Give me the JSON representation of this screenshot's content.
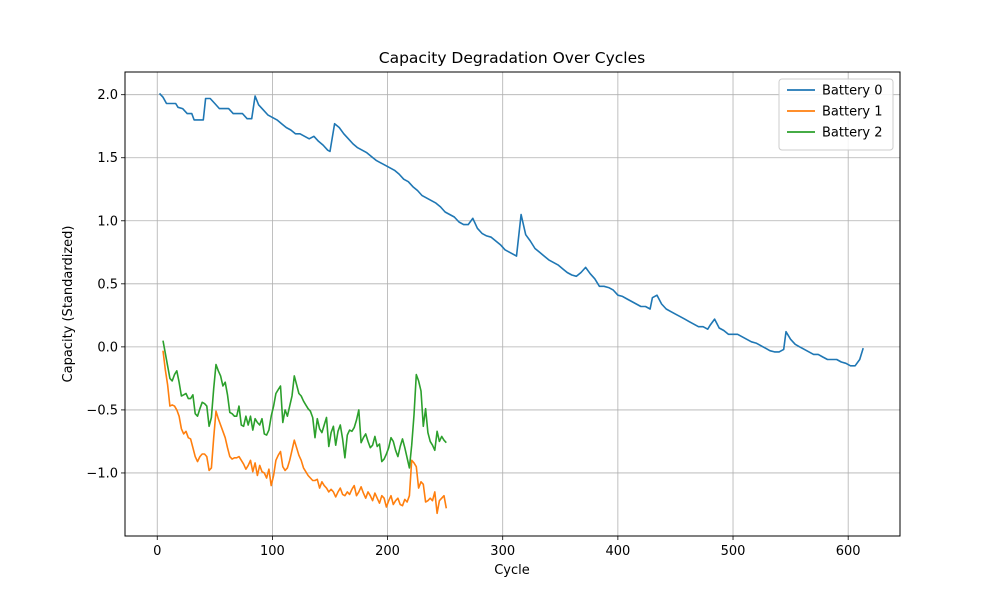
{
  "chart_data": {
    "type": "line",
    "title": "Capacity Degradation Over Cycles",
    "xlabel": "Cycle",
    "ylabel": "Capacity (Standardized)",
    "xlim": [
      -28,
      645
    ],
    "ylim": [
      -1.5,
      2.18
    ],
    "xticks": [
      0,
      100,
      200,
      300,
      400,
      500,
      600
    ],
    "yticks": [
      -1.0,
      -0.5,
      0.0,
      0.5,
      1.0,
      1.5,
      2.0
    ],
    "grid": true,
    "legend": "top-right",
    "series": [
      {
        "name": "Battery 0",
        "color": "#1f77b4",
        "x": [
          2,
          5,
          8,
          12,
          16,
          18,
          22,
          26,
          30,
          32,
          36,
          40,
          42,
          46,
          50,
          54,
          58,
          62,
          66,
          70,
          74,
          78,
          82,
          85,
          88,
          92,
          96,
          100,
          104,
          108,
          112,
          116,
          120,
          124,
          128,
          132,
          136,
          140,
          144,
          148,
          150,
          154,
          158,
          162,
          166,
          170,
          174,
          178,
          182,
          186,
          190,
          194,
          198,
          202,
          206,
          210,
          214,
          218,
          222,
          226,
          230,
          234,
          238,
          242,
          246,
          250,
          254,
          258,
          262,
          266,
          270,
          274,
          278,
          282,
          286,
          290,
          294,
          298,
          302,
          306,
          310,
          312,
          316,
          320,
          324,
          328,
          332,
          336,
          340,
          344,
          348,
          352,
          356,
          360,
          364,
          368,
          372,
          376,
          380,
          384,
          388,
          392,
          396,
          400,
          404,
          408,
          412,
          416,
          420,
          424,
          428,
          430,
          434,
          438,
          442,
          446,
          450,
          454,
          458,
          462,
          466,
          470,
          474,
          478,
          480,
          484,
          488,
          492,
          496,
          500,
          504,
          508,
          512,
          516,
          520,
          524,
          528,
          532,
          536,
          540,
          544,
          546,
          550,
          554,
          558,
          562,
          566,
          570,
          574,
          578,
          582,
          586,
          590,
          594,
          598,
          602,
          606,
          610,
          613
        ],
        "y": [
          2.01,
          1.98,
          1.93,
          1.93,
          1.93,
          1.9,
          1.89,
          1.85,
          1.85,
          1.8,
          1.8,
          1.8,
          1.97,
          1.97,
          1.93,
          1.89,
          1.89,
          1.89,
          1.85,
          1.85,
          1.85,
          1.81,
          1.81,
          1.99,
          1.92,
          1.88,
          1.84,
          1.82,
          1.8,
          1.77,
          1.74,
          1.72,
          1.69,
          1.69,
          1.67,
          1.65,
          1.67,
          1.63,
          1.6,
          1.56,
          1.55,
          1.77,
          1.74,
          1.69,
          1.65,
          1.61,
          1.58,
          1.56,
          1.54,
          1.51,
          1.48,
          1.46,
          1.44,
          1.42,
          1.4,
          1.37,
          1.33,
          1.31,
          1.27,
          1.24,
          1.2,
          1.18,
          1.16,
          1.14,
          1.11,
          1.07,
          1.05,
          1.03,
          0.99,
          0.97,
          0.97,
          1.02,
          0.94,
          0.9,
          0.88,
          0.87,
          0.84,
          0.81,
          0.77,
          0.75,
          0.73,
          0.72,
          1.05,
          0.89,
          0.84,
          0.78,
          0.75,
          0.72,
          0.69,
          0.67,
          0.65,
          0.62,
          0.59,
          0.57,
          0.56,
          0.59,
          0.63,
          0.58,
          0.54,
          0.48,
          0.48,
          0.47,
          0.45,
          0.41,
          0.4,
          0.38,
          0.36,
          0.34,
          0.32,
          0.32,
          0.3,
          0.39,
          0.41,
          0.34,
          0.3,
          0.28,
          0.26,
          0.24,
          0.22,
          0.2,
          0.18,
          0.16,
          0.16,
          0.14,
          0.17,
          0.22,
          0.15,
          0.13,
          0.1,
          0.1,
          0.1,
          0.08,
          0.06,
          0.04,
          0.03,
          0.01,
          -0.01,
          -0.03,
          -0.04,
          -0.04,
          -0.02,
          0.12,
          0.06,
          0.02,
          0.0,
          -0.02,
          -0.04,
          -0.06,
          -0.06,
          -0.08,
          -0.1,
          -0.1,
          -0.1,
          -0.12,
          -0.13,
          -0.15,
          -0.15,
          -0.1,
          -0.01
        ]
      },
      {
        "name": "Battery 1",
        "color": "#ff7f0e",
        "x": [
          5,
          7,
          9,
          11,
          13,
          15,
          17,
          19,
          21,
          23,
          25,
          27,
          29,
          31,
          33,
          35,
          37,
          39,
          41,
          43,
          45,
          47,
          49,
          51,
          53,
          55,
          57,
          59,
          61,
          63,
          65,
          67,
          69,
          71,
          73,
          75,
          77,
          79,
          81,
          83,
          85,
          87,
          89,
          91,
          93,
          95,
          97,
          99,
          101,
          103,
          105,
          107,
          109,
          111,
          113,
          115,
          117,
          119,
          121,
          123,
          125,
          127,
          129,
          131,
          133,
          135,
          137,
          139,
          141,
          143,
          145,
          147,
          149,
          151,
          153,
          155,
          157,
          159,
          161,
          163,
          165,
          167,
          169,
          171,
          173,
          175,
          177,
          179,
          181,
          183,
          185,
          187,
          189,
          191,
          193,
          195,
          197,
          199,
          201,
          203,
          205,
          207,
          209,
          211,
          213,
          215,
          217,
          219,
          221,
          223,
          225,
          227,
          229,
          231,
          233,
          235,
          237,
          239,
          241,
          243,
          245,
          247,
          249,
          251
        ],
        "y": [
          -0.03,
          -0.18,
          -0.3,
          -0.47,
          -0.46,
          -0.47,
          -0.5,
          -0.55,
          -0.65,
          -0.69,
          -0.67,
          -0.72,
          -0.73,
          -0.8,
          -0.87,
          -0.91,
          -0.87,
          -0.85,
          -0.85,
          -0.87,
          -0.98,
          -0.96,
          -0.72,
          -0.51,
          -0.57,
          -0.62,
          -0.67,
          -0.72,
          -0.8,
          -0.87,
          -0.89,
          -0.88,
          -0.88,
          -0.87,
          -0.9,
          -0.93,
          -0.97,
          -0.94,
          -0.9,
          -0.99,
          -0.92,
          -1.02,
          -0.94,
          -0.99,
          -1.0,
          -1.04,
          -0.97,
          -1.1,
          -1.02,
          -0.9,
          -0.86,
          -0.83,
          -0.95,
          -0.98,
          -0.96,
          -0.9,
          -0.82,
          -0.74,
          -0.8,
          -0.86,
          -0.9,
          -0.96,
          -0.99,
          -1.02,
          -1.04,
          -1.06,
          -1.06,
          -1.05,
          -1.12,
          -1.07,
          -1.1,
          -1.12,
          -1.15,
          -1.13,
          -1.15,
          -1.19,
          -1.15,
          -1.12,
          -1.17,
          -1.18,
          -1.15,
          -1.17,
          -1.13,
          -1.1,
          -1.18,
          -1.15,
          -1.11,
          -1.16,
          -1.2,
          -1.15,
          -1.18,
          -1.22,
          -1.16,
          -1.2,
          -1.24,
          -1.18,
          -1.2,
          -1.27,
          -1.22,
          -1.18,
          -1.25,
          -1.22,
          -1.2,
          -1.25,
          -1.26,
          -1.21,
          -1.23,
          -1.18,
          -0.9,
          -0.92,
          -0.95,
          -1.12,
          -1.07,
          -1.09,
          -1.23,
          -1.22,
          -1.2,
          -1.22,
          -1.15,
          -1.32,
          -1.22,
          -1.2,
          -1.18,
          -1.28
        ]
      },
      {
        "name": "Battery 2",
        "color": "#2ca02c",
        "x": [
          5,
          7,
          9,
          11,
          13,
          15,
          17,
          19,
          21,
          23,
          25,
          27,
          29,
          31,
          33,
          35,
          37,
          39,
          41,
          43,
          45,
          47,
          49,
          51,
          53,
          55,
          57,
          59,
          61,
          63,
          65,
          67,
          69,
          71,
          73,
          75,
          77,
          79,
          81,
          83,
          85,
          87,
          89,
          91,
          93,
          95,
          97,
          99,
          101,
          103,
          105,
          107,
          109,
          111,
          113,
          115,
          117,
          119,
          121,
          123,
          125,
          127,
          129,
          131,
          133,
          135,
          137,
          139,
          141,
          143,
          145,
          147,
          149,
          151,
          153,
          155,
          157,
          159,
          161,
          163,
          165,
          167,
          169,
          171,
          173,
          175,
          177,
          179,
          181,
          183,
          185,
          187,
          189,
          191,
          193,
          195,
          197,
          199,
          201,
          203,
          205,
          207,
          209,
          211,
          213,
          215,
          217,
          219,
          221,
          223,
          225,
          227,
          229,
          231,
          233,
          235,
          237,
          239,
          241,
          243,
          245,
          247,
          249,
          251
        ],
        "y": [
          0.05,
          -0.05,
          -0.15,
          -0.25,
          -0.27,
          -0.22,
          -0.19,
          -0.28,
          -0.39,
          -0.38,
          -0.37,
          -0.41,
          -0.41,
          -0.38,
          -0.53,
          -0.55,
          -0.49,
          -0.44,
          -0.45,
          -0.47,
          -0.63,
          -0.56,
          -0.33,
          -0.14,
          -0.19,
          -0.23,
          -0.31,
          -0.28,
          -0.38,
          -0.52,
          -0.53,
          -0.55,
          -0.55,
          -0.47,
          -0.62,
          -0.63,
          -0.55,
          -0.62,
          -0.55,
          -0.66,
          -0.57,
          -0.6,
          -0.62,
          -0.57,
          -0.69,
          -0.7,
          -0.66,
          -0.55,
          -0.47,
          -0.37,
          -0.34,
          -0.31,
          -0.6,
          -0.5,
          -0.55,
          -0.47,
          -0.39,
          -0.23,
          -0.3,
          -0.37,
          -0.39,
          -0.43,
          -0.46,
          -0.49,
          -0.51,
          -0.56,
          -0.72,
          -0.57,
          -0.65,
          -0.68,
          -0.62,
          -0.56,
          -0.79,
          -0.68,
          -0.63,
          -0.78,
          -0.67,
          -0.62,
          -0.73,
          -0.88,
          -0.7,
          -0.66,
          -0.67,
          -0.64,
          -0.58,
          -0.5,
          -0.76,
          -0.72,
          -0.69,
          -0.75,
          -0.8,
          -0.78,
          -0.71,
          -0.79,
          -0.77,
          -0.91,
          -0.89,
          -0.85,
          -0.8,
          -0.72,
          -0.75,
          -0.82,
          -0.87,
          -0.79,
          -0.73,
          -0.8,
          -0.88,
          -0.96,
          -0.78,
          -0.54,
          -0.22,
          -0.27,
          -0.35,
          -0.63,
          -0.49,
          -0.68,
          -0.75,
          -0.78,
          -0.82,
          -0.67,
          -0.75,
          -0.71,
          -0.74,
          -0.76
        ]
      }
    ]
  }
}
